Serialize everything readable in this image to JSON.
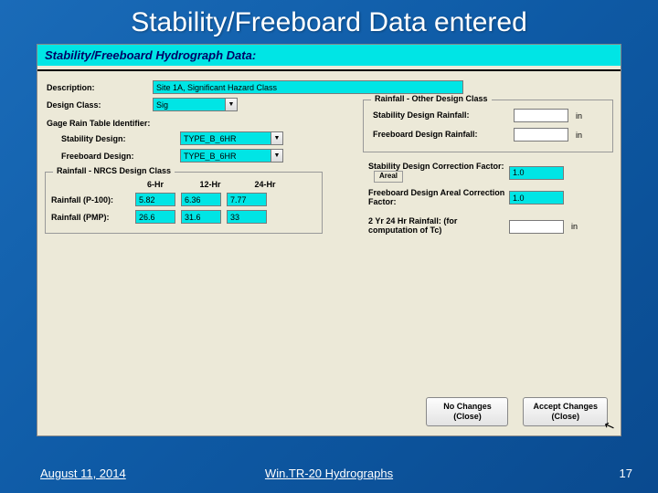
{
  "slide": {
    "title": "Stability/Freeboard Data entered",
    "footer_date": "August 11, 2014",
    "footer_center": "Win.TR-20 Hydrographs",
    "footer_page": "17"
  },
  "dialog": {
    "title": "Stability/Freeboard Hydrograph Data:",
    "description_label": "Description:",
    "description_value": "Site 1A, Significant Hazard Class",
    "design_class_label": "Design Class:",
    "design_class_value": "Sig",
    "gage_label": "Gage Rain Table Identifier:",
    "stability_design_label": "Stability Design:",
    "stability_design_value": "TYPE_B_6HR",
    "freeboard_design_label": "Freeboard Design:",
    "freeboard_design_value": "TYPE_B_6HR"
  },
  "nrcs": {
    "legend": "Rainfall - NRCS Design Class",
    "col_6hr": "6-Hr",
    "col_12hr": "12-Hr",
    "col_24hr": "24-Hr",
    "p100_label": "Rainfall (P-100):",
    "p100_6": "5.82",
    "p100_12": "6.36",
    "p100_24": "7.77",
    "pmp_label": "Rainfall (PMP):",
    "pmp_6": "26.6",
    "pmp_12": "31.6",
    "pmp_24": "33"
  },
  "other": {
    "legend": "Rainfall - Other Design Class",
    "stab_rain_label": "Stability Design Rainfall:",
    "stab_rain_value": "",
    "free_rain_label": "Freeboard Design Rainfall:",
    "free_rain_value": "",
    "unit_in": "in"
  },
  "factors": {
    "stab_cf_label": "Stability Design Correction Factor:",
    "areal_badge": "Areal",
    "stab_cf_value": "1.0",
    "free_cf_label": "Freeboard Design Areal Correction Factor:",
    "free_cf_value": "1.0",
    "tc_label": "2 Yr 24 Hr Rainfall: (for computation of Tc)",
    "tc_value": "",
    "unit_in": "in"
  },
  "buttons": {
    "no_changes": "No Changes\n(Close)",
    "accept": "Accept Changes\n(Close)"
  }
}
